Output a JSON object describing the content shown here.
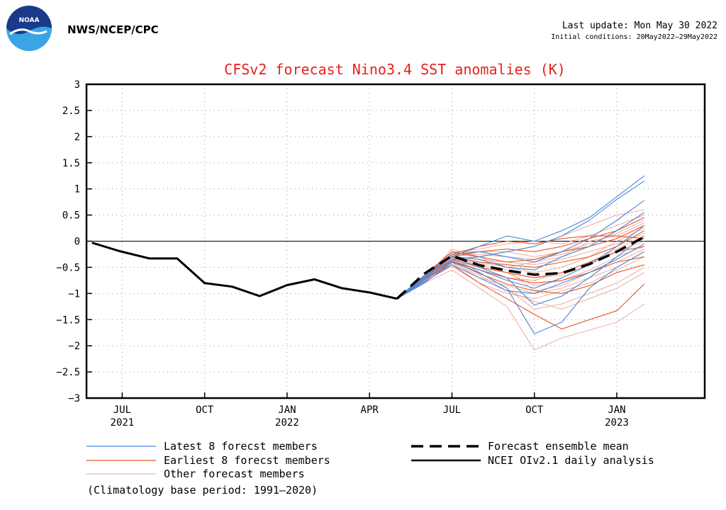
{
  "header": {
    "agency": "NWS/NCEP/CPC",
    "logo_text": "NOAA",
    "last_update": "Last update: Mon May 30 2022",
    "initial_conditions": "Initial conditions: 20May2022–29May2022"
  },
  "colors": {
    "title": "#e8201a",
    "latest": "#4a86d8",
    "earliest": "#ee5522",
    "other": "#e8a496",
    "analysis": "#000000",
    "logo_dark": "#1b3a8c",
    "logo_light": "#3aa5e6"
  },
  "chart_data": {
    "type": "line",
    "title": "CFSv2 forecast Nino3.4 SST anomalies (K)",
    "xlabel": "",
    "ylabel": "",
    "ylim": [
      -3,
      3
    ],
    "yticks": [
      3,
      2.5,
      2,
      1.5,
      1,
      0.5,
      0,
      -0.5,
      -1,
      -1.5,
      -2,
      -2.5,
      -3
    ],
    "ytick_labels": [
      "3",
      "2.5",
      "2",
      "1.5",
      "1",
      "0.5",
      "0",
      "−0.5",
      "−1",
      "−1.5",
      "−2",
      "−2.5",
      "−3"
    ],
    "xlim": [
      -1.3,
      21.2
    ],
    "x_ticks": [
      {
        "x": 0,
        "label": "JUL",
        "year": "2021"
      },
      {
        "x": 3,
        "label": "OCT",
        "year": ""
      },
      {
        "x": 6,
        "label": "JAN",
        "year": "2022"
      },
      {
        "x": 9,
        "label": "APR",
        "year": ""
      },
      {
        "x": 12,
        "label": "JUL",
        "year": ""
      },
      {
        "x": 15,
        "label": "OCT",
        "year": ""
      },
      {
        "x": 18,
        "label": "JAN",
        "year": "2023"
      }
    ],
    "grid": true,
    "zero_line": true,
    "analysis": {
      "name": "NCEI OIv2.1 daily analysis",
      "x": [
        -1.1,
        -0.1,
        1.0,
        2.0,
        3.0,
        4.0,
        5.0,
        6.0,
        7.0,
        8.0,
        9.0,
        10.0
      ],
      "y": [
        -0.03,
        -0.19,
        -0.33,
        -0.33,
        -0.8,
        -0.87,
        -1.05,
        -0.84,
        -0.73,
        -0.9,
        -0.98,
        -1.1
      ]
    },
    "ensemble_mean": {
      "name": "Forecast ensemble mean",
      "x": [
        10.0,
        11.0,
        12.0,
        13.0,
        14.0,
        15.0,
        16.0,
        17.0,
        18.0,
        19.0
      ],
      "y": [
        -1.1,
        -0.62,
        -0.28,
        -0.46,
        -0.56,
        -0.64,
        -0.61,
        -0.44,
        -0.2,
        0.08
      ]
    },
    "series": [
      {
        "name": "Latest 8 forecast members",
        "group": "latest",
        "x": [
          10,
          11,
          12,
          13,
          14,
          15,
          16,
          17,
          18,
          19
        ],
        "members": [
          [
            -1.1,
            -0.7,
            -0.3,
            -0.1,
            0.1,
            0.0,
            0.2,
            0.45,
            0.85,
            1.25
          ],
          [
            -1.1,
            -0.75,
            -0.35,
            -0.3,
            -0.2,
            -0.1,
            0.1,
            0.4,
            0.8,
            1.15
          ],
          [
            -1.1,
            -0.8,
            -0.4,
            -0.6,
            -0.9,
            -1.77,
            -1.55,
            -0.9,
            -0.5,
            -0.2
          ],
          [
            -1.1,
            -0.7,
            -0.3,
            -0.5,
            -0.7,
            -1.22,
            -1.05,
            -0.7,
            -0.3,
            0.1
          ],
          [
            -1.1,
            -0.65,
            -0.25,
            -0.2,
            -0.3,
            -0.4,
            -0.2,
            0.05,
            0.4,
            0.78
          ],
          [
            -1.1,
            -0.72,
            -0.38,
            -0.55,
            -0.75,
            -0.9,
            -0.7,
            -0.45,
            -0.1,
            0.3
          ],
          [
            -1.1,
            -0.78,
            -0.45,
            -0.7,
            -0.95,
            -1.0,
            -0.8,
            -0.6,
            -0.35,
            -0.05
          ],
          [
            -1.1,
            -0.68,
            -0.3,
            -0.35,
            -0.5,
            -0.55,
            -0.3,
            -0.1,
            0.2,
            0.55
          ]
        ]
      },
      {
        "name": "Earliest 8 forecast members",
        "group": "earliest",
        "x": [
          10,
          11,
          12,
          13,
          14,
          15,
          16,
          17,
          18,
          19
        ],
        "members": [
          [
            -1.1,
            -0.72,
            -0.45,
            -0.8,
            -1.1,
            -1.4,
            -1.68,
            -1.5,
            -1.33,
            -0.82
          ],
          [
            -1.1,
            -0.7,
            -0.3,
            -0.2,
            -0.15,
            -0.2,
            -0.1,
            0.05,
            0.2,
            0.45
          ],
          [
            -1.1,
            -0.65,
            -0.2,
            -0.3,
            -0.4,
            -0.35,
            -0.2,
            -0.1,
            0.05,
            0.3
          ],
          [
            -1.1,
            -0.7,
            -0.35,
            -0.5,
            -0.6,
            -0.7,
            -0.6,
            -0.4,
            -0.2,
            -0.1
          ],
          [
            -1.1,
            -0.68,
            -0.25,
            -0.1,
            0.0,
            -0.05,
            0.05,
            0.1,
            0.1,
            0.05
          ],
          [
            -1.1,
            -0.75,
            -0.4,
            -0.55,
            -0.7,
            -0.8,
            -0.75,
            -0.6,
            -0.4,
            -0.3
          ],
          [
            -1.1,
            -0.7,
            -0.3,
            -0.4,
            -0.45,
            -0.5,
            -0.4,
            -0.3,
            -0.1,
            0.2
          ],
          [
            -1.1,
            -0.72,
            -0.38,
            -0.62,
            -0.82,
            -0.95,
            -1.0,
            -0.85,
            -0.6,
            -0.45
          ]
        ]
      },
      {
        "name": "Other forecast members",
        "group": "other",
        "x": [
          10,
          11,
          12,
          13,
          14,
          15,
          16,
          17,
          18,
          19
        ],
        "members": [
          [
            -1.1,
            -0.72,
            -0.15,
            -0.3,
            -0.5,
            -0.4,
            -0.3,
            0.0,
            0.1,
            0.35
          ],
          [
            -1.1,
            -0.8,
            -0.55,
            -0.9,
            -1.25,
            -2.08,
            -1.85,
            -1.7,
            -1.55,
            -1.2
          ],
          [
            -1.1,
            -0.7,
            -0.3,
            -0.6,
            -0.9,
            -1.3,
            -1.2,
            -1.0,
            -0.8,
            -0.5
          ],
          [
            -1.1,
            -0.65,
            -0.2,
            -0.2,
            -0.2,
            -0.1,
            0.1,
            0.3,
            0.5,
            0.6
          ],
          [
            -1.1,
            -0.75,
            -0.4,
            -0.7,
            -0.85,
            -1.0,
            -0.9,
            -0.7,
            -0.5,
            -0.2
          ],
          [
            -1.1,
            -0.7,
            -0.35,
            -0.4,
            -0.5,
            -0.6,
            -0.5,
            -0.3,
            0.0,
            0.25
          ],
          [
            -1.1,
            -0.68,
            -0.25,
            -0.3,
            -0.2,
            -0.3,
            -0.2,
            -0.05,
            0.15,
            0.4
          ],
          [
            -1.1,
            -0.72,
            -0.3,
            -0.5,
            -0.6,
            -0.85,
            -0.75,
            -0.55,
            -0.3,
            -0.1
          ],
          [
            -1.1,
            -0.74,
            -0.42,
            -0.65,
            -0.95,
            -1.15,
            -1.3,
            -1.1,
            -0.9,
            -0.6
          ],
          [
            -1.1,
            -0.66,
            -0.22,
            -0.15,
            -0.05,
            0.0,
            -0.05,
            0.1,
            0.3,
            0.5
          ],
          [
            -1.1,
            -0.7,
            -0.33,
            -0.45,
            -0.6,
            -0.7,
            -0.65,
            -0.45,
            -0.2,
            0.0
          ],
          [
            -1.1,
            -0.76,
            -0.48,
            -0.8,
            -1.0,
            -1.1,
            -0.95,
            -0.8,
            -0.55,
            -0.3
          ],
          [
            -1.1,
            -0.69,
            -0.28,
            -0.35,
            -0.4,
            -0.45,
            -0.35,
            -0.2,
            -0.05,
            0.15
          ],
          [
            -1.1,
            -0.73,
            -0.36,
            -0.55,
            -0.7,
            -0.75,
            -0.6,
            -0.4,
            -0.15,
            0.1
          ],
          [
            -1.1,
            -0.71,
            -0.31,
            -0.42,
            -0.55,
            -0.95,
            -0.85,
            -0.6,
            -0.4,
            -0.15
          ],
          [
            -1.1,
            -0.67,
            -0.27,
            -0.25,
            -0.3,
            -0.35,
            -0.25,
            -0.1,
            0.2,
            0.45
          ]
        ]
      }
    ],
    "legend": {
      "position": "bottom",
      "items": [
        {
          "label": "Latest 8 forecst members",
          "group": "latest"
        },
        {
          "label": "Earliest 8 forecst members",
          "group": "earliest"
        },
        {
          "label": "Other forecast members",
          "group": "other"
        },
        {
          "label": "Forecast ensemble mean",
          "group": "mean"
        },
        {
          "label": "NCEI OIv2.1 daily analysis",
          "group": "analysis"
        }
      ]
    },
    "note": "(Climatology base period: 1991–2020)"
  }
}
